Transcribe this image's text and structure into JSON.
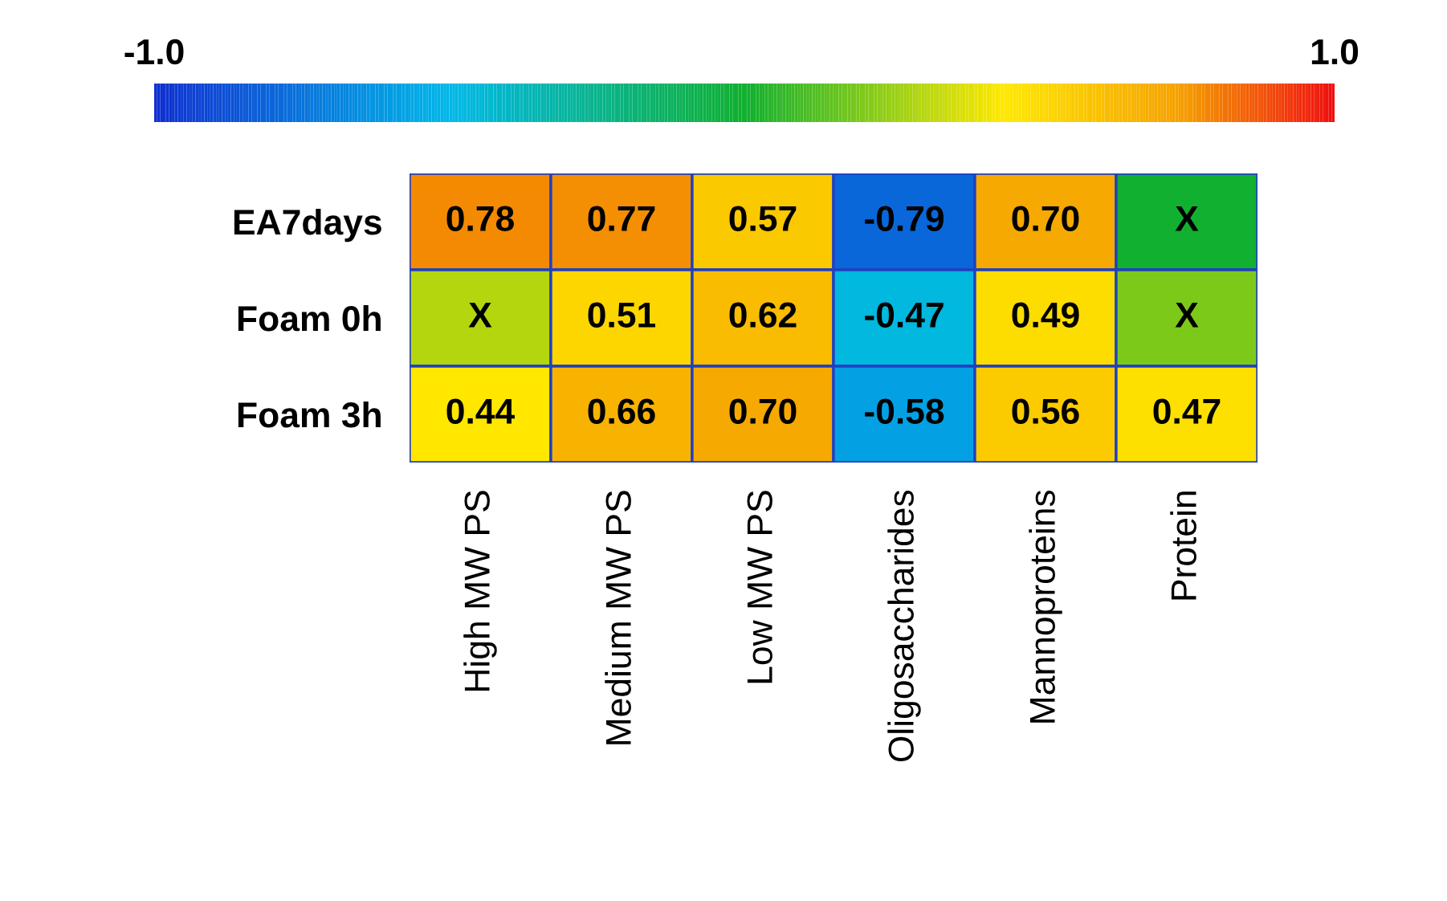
{
  "chart_data": {
    "type": "heatmap",
    "categories": [
      "High MW PS",
      "Medium MW PS",
      "Low MW PS",
      "Oligosaccharides",
      "Mannoproteins",
      "Protein"
    ],
    "y_categories": [
      "EA7days",
      "Foam 0h",
      "Foam 3h"
    ],
    "cells": [
      [
        0.78,
        0.77,
        0.57,
        -0.79,
        0.7,
        0.0
      ],
      [
        0.3,
        0.51,
        0.62,
        -0.47,
        0.49,
        0.2
      ],
      [
        0.44,
        0.66,
        0.7,
        -0.58,
        0.56,
        0.47
      ]
    ],
    "cell_labels": [
      [
        "0.78",
        "0.77",
        "0.57",
        "-0.79",
        "0.70",
        "X"
      ],
      [
        "X",
        "0.51",
        "0.62",
        "-0.47",
        "0.49",
        "X"
      ],
      [
        "0.44",
        "0.66",
        "0.70",
        "-0.58",
        "0.56",
        "0.47"
      ]
    ],
    "clim": [
      -1.0,
      1.0
    ],
    "cticks": [
      {
        "value": -1.0,
        "label": "-1.0"
      },
      {
        "value": 1.0,
        "label": "1.0"
      }
    ]
  }
}
